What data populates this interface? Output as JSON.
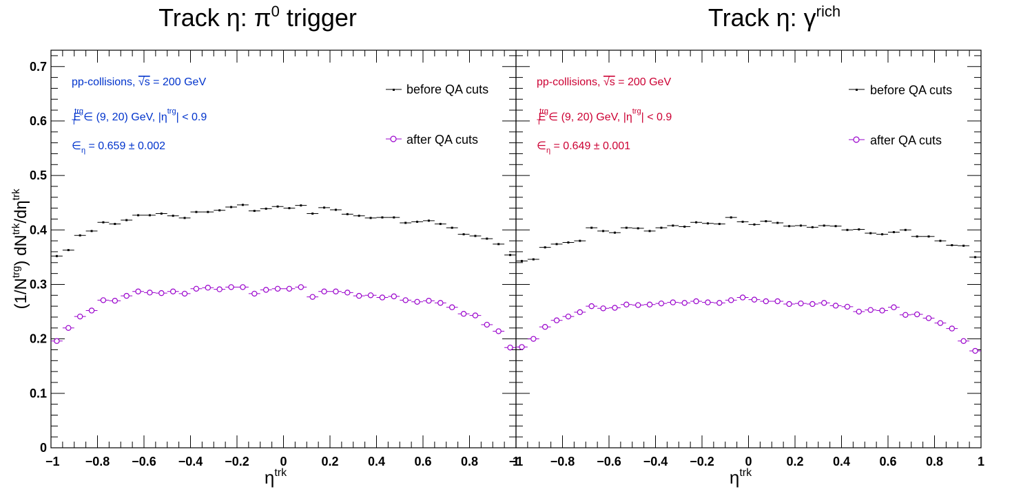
{
  "chart_data": [
    {
      "type": "scatter",
      "title": "Track η: π",
      "title_sup": "0",
      "title_suffix": " trigger",
      "xlabel": "η",
      "xlabel_sup": "trk",
      "ylabel": "(1/N",
      "ylabel_sup1": "trg",
      "ylabel_mid": ") dN",
      "ylabel_sup2": "trk",
      "ylabel_mid2": "/dη",
      "ylabel_sup3": "trk",
      "xlim": [
        -1,
        1
      ],
      "ylim": [
        0,
        0.73
      ],
      "xticks": [
        "−1",
        "−0.8",
        "−0.6",
        "−0.4",
        "−0.2",
        "0",
        "0.2",
        "0.4",
        "0.6",
        "0.8",
        "1"
      ],
      "yticks": [
        "0",
        "0.1",
        "0.2",
        "0.3",
        "0.4",
        "0.5",
        "0.6",
        "0.7"
      ],
      "annotation_color": "#0033cc",
      "annotations": {
        "line1": "pp-collisions, ",
        "sqrt": "√s",
        "line1b": " = 200 GeV",
        "line2_E": "E",
        "line2_T": "T",
        "line2_trg": "trg",
        "line2_mid": " ∈ (9, 20) GeV, |η",
        "line2_trg2": "trg",
        "line2_end": "| < 0.9",
        "line3_eps": "∈",
        "line3_sub": "η",
        "line3_val": " = 0.659 ± 0.002"
      },
      "legend": {
        "position": "top-right",
        "before": "before QA cuts",
        "after": "after QA cuts"
      },
      "series": [
        {
          "name": "before QA cuts",
          "color": "#000000",
          "marker": "dot",
          "x": [
            -0.975,
            -0.925,
            -0.875,
            -0.825,
            -0.775,
            -0.725,
            -0.675,
            -0.625,
            -0.575,
            -0.525,
            -0.475,
            -0.425,
            -0.375,
            -0.325,
            -0.275,
            -0.225,
            -0.175,
            -0.125,
            -0.075,
            -0.025,
            0.025,
            0.075,
            0.125,
            0.175,
            0.225,
            0.275,
            0.325,
            0.375,
            0.425,
            0.475,
            0.525,
            0.575,
            0.625,
            0.675,
            0.725,
            0.775,
            0.825,
            0.875,
            0.925,
            0.975
          ],
          "y": [
            0.352,
            0.363,
            0.39,
            0.398,
            0.414,
            0.411,
            0.418,
            0.427,
            0.427,
            0.43,
            0.426,
            0.422,
            0.433,
            0.433,
            0.436,
            0.442,
            0.446,
            0.435,
            0.439,
            0.443,
            0.44,
            0.445,
            0.43,
            0.441,
            0.437,
            0.429,
            0.426,
            0.422,
            0.423,
            0.423,
            0.413,
            0.415,
            0.417,
            0.411,
            0.404,
            0.392,
            0.389,
            0.384,
            0.374,
            0.354
          ]
        },
        {
          "name": "after QA cuts",
          "color": "#9900cc",
          "marker": "open-circle",
          "x": [
            -0.975,
            -0.925,
            -0.875,
            -0.825,
            -0.775,
            -0.725,
            -0.675,
            -0.625,
            -0.575,
            -0.525,
            -0.475,
            -0.425,
            -0.375,
            -0.325,
            -0.275,
            -0.225,
            -0.175,
            -0.125,
            -0.075,
            -0.025,
            0.025,
            0.075,
            0.125,
            0.175,
            0.225,
            0.275,
            0.325,
            0.375,
            0.425,
            0.475,
            0.525,
            0.575,
            0.625,
            0.675,
            0.725,
            0.775,
            0.825,
            0.875,
            0.925,
            0.975
          ],
          "y": [
            0.196,
            0.22,
            0.241,
            0.252,
            0.271,
            0.27,
            0.279,
            0.287,
            0.285,
            0.284,
            0.287,
            0.283,
            0.292,
            0.294,
            0.291,
            0.295,
            0.295,
            0.283,
            0.29,
            0.292,
            0.292,
            0.295,
            0.277,
            0.287,
            0.287,
            0.285,
            0.279,
            0.28,
            0.276,
            0.278,
            0.271,
            0.268,
            0.27,
            0.266,
            0.258,
            0.246,
            0.243,
            0.226,
            0.214,
            0.184
          ]
        }
      ]
    },
    {
      "type": "scatter",
      "title": "Track η: γ",
      "title_sup": "rich",
      "title_suffix": "",
      "xlabel": "η",
      "xlabel_sup": "trk",
      "xlim": [
        -1,
        1
      ],
      "ylim": [
        0,
        0.73
      ],
      "xticks": [
        "−1",
        "−0.8",
        "−0.6",
        "−0.4",
        "−0.2",
        "0",
        "0.2",
        "0.4",
        "0.6",
        "0.8",
        "1"
      ],
      "annotation_color": "#cc0033",
      "annotations": {
        "line1": "pp-collisions, ",
        "sqrt": "√s",
        "line1b": " = 200 GeV",
        "line2_E": "E",
        "line2_T": "T",
        "line2_trg": "trg",
        "line2_mid": " ∈ (9, 20) GeV, |η",
        "line2_trg2": "trg",
        "line2_end": "| < 0.9",
        "line3_eps": "∈",
        "line3_sub": "η",
        "line3_val": " = 0.649 ± 0.001"
      },
      "legend": {
        "position": "top-right",
        "before": "before QA cuts",
        "after": "after QA cuts"
      },
      "series": [
        {
          "name": "before QA cuts",
          "color": "#000000",
          "marker": "dot",
          "x": [
            -0.975,
            -0.925,
            -0.875,
            -0.825,
            -0.775,
            -0.725,
            -0.675,
            -0.625,
            -0.575,
            -0.525,
            -0.475,
            -0.425,
            -0.375,
            -0.325,
            -0.275,
            -0.225,
            -0.175,
            -0.125,
            -0.075,
            -0.025,
            0.025,
            0.075,
            0.125,
            0.175,
            0.225,
            0.275,
            0.325,
            0.375,
            0.425,
            0.475,
            0.525,
            0.575,
            0.625,
            0.675,
            0.725,
            0.775,
            0.825,
            0.875,
            0.925,
            0.975
          ],
          "y": [
            0.343,
            0.346,
            0.368,
            0.374,
            0.377,
            0.38,
            0.404,
            0.398,
            0.395,
            0.404,
            0.403,
            0.398,
            0.404,
            0.408,
            0.406,
            0.414,
            0.412,
            0.411,
            0.423,
            0.415,
            0.41,
            0.416,
            0.413,
            0.407,
            0.408,
            0.405,
            0.408,
            0.407,
            0.4,
            0.401,
            0.394,
            0.392,
            0.396,
            0.4,
            0.388,
            0.388,
            0.38,
            0.372,
            0.371,
            0.35
          ]
        },
        {
          "name": "after QA cuts",
          "color": "#9900cc",
          "marker": "open-circle",
          "x": [
            -0.975,
            -0.925,
            -0.875,
            -0.825,
            -0.775,
            -0.725,
            -0.675,
            -0.625,
            -0.575,
            -0.525,
            -0.475,
            -0.425,
            -0.375,
            -0.325,
            -0.275,
            -0.225,
            -0.175,
            -0.125,
            -0.075,
            -0.025,
            0.025,
            0.075,
            0.125,
            0.175,
            0.225,
            0.275,
            0.325,
            0.375,
            0.425,
            0.475,
            0.525,
            0.575,
            0.625,
            0.675,
            0.725,
            0.775,
            0.825,
            0.875,
            0.925,
            0.975
          ],
          "y": [
            0.185,
            0.2,
            0.222,
            0.234,
            0.241,
            0.249,
            0.26,
            0.256,
            0.257,
            0.263,
            0.262,
            0.263,
            0.265,
            0.267,
            0.266,
            0.269,
            0.267,
            0.266,
            0.271,
            0.276,
            0.272,
            0.269,
            0.269,
            0.264,
            0.265,
            0.264,
            0.266,
            0.261,
            0.259,
            0.25,
            0.253,
            0.252,
            0.258,
            0.244,
            0.245,
            0.238,
            0.229,
            0.219,
            0.196,
            0.178
          ]
        }
      ]
    }
  ]
}
